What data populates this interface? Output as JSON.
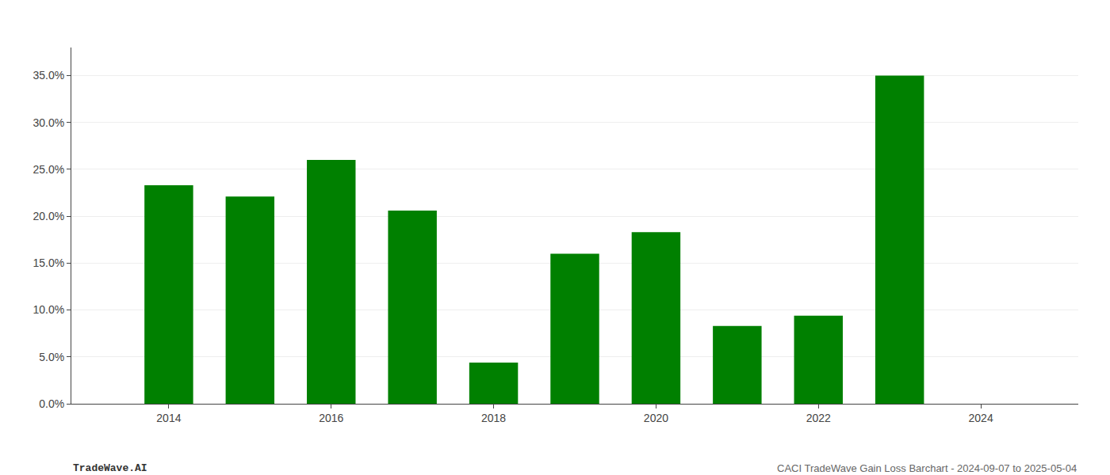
{
  "chart_data": {
    "type": "bar",
    "x": [
      2014,
      2015,
      2016,
      2017,
      2018,
      2019,
      2020,
      2021,
      2022,
      2023
    ],
    "values": [
      0.233,
      0.221,
      0.26,
      0.206,
      0.044,
      0.16,
      0.183,
      0.083,
      0.094,
      0.35
    ],
    "color": "#008000",
    "xlim": [
      2012.8,
      2025.2
    ],
    "xticks": [
      2014,
      2016,
      2018,
      2020,
      2022,
      2024
    ],
    "ylim": [
      0,
      0.38
    ],
    "yticks": [
      {
        "value": 0.0,
        "label": "0.0%"
      },
      {
        "value": 0.05,
        "label": "5.0%"
      },
      {
        "value": 0.1,
        "label": "10.0%"
      },
      {
        "value": 0.15,
        "label": "15.0%"
      },
      {
        "value": 0.2,
        "label": "20.0%"
      },
      {
        "value": 0.25,
        "label": "25.0%"
      },
      {
        "value": 0.3,
        "label": "30.0%"
      },
      {
        "value": 0.35,
        "label": "35.0%"
      }
    ],
    "grid": true,
    "annotations": [
      "TradeWave.AI",
      "CACI TradeWave Gain Loss Barchart - 2024-09-07 to 2025-05-04"
    ]
  }
}
